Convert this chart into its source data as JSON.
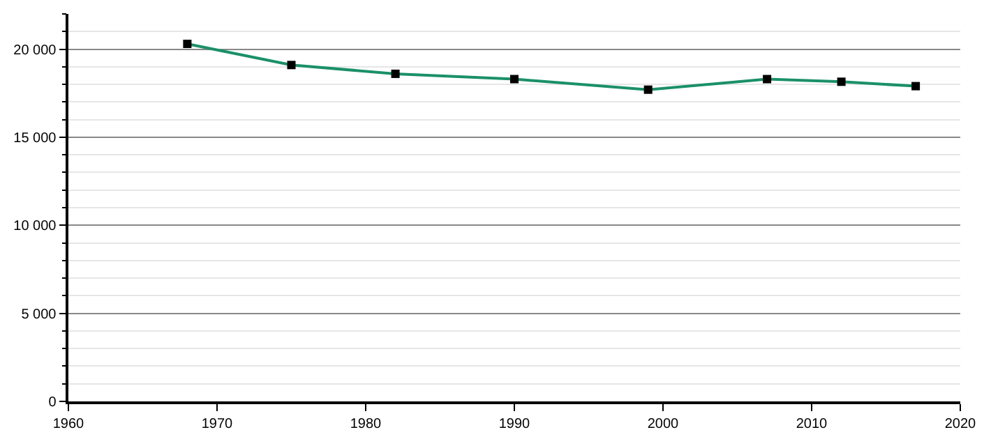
{
  "chart_data": {
    "type": "line",
    "x": [
      1968,
      1975,
      1982,
      1990,
      1999,
      2007,
      2012,
      2017
    ],
    "series": [
      {
        "color": "#1a9069",
        "values": [
          20300,
          19100,
          18600,
          18300,
          17700,
          18300,
          18150,
          17900
        ]
      }
    ],
    "xlim": [
      1960,
      2020
    ],
    "xticks": [
      1960,
      1970,
      1980,
      1990,
      2000,
      2010,
      2020
    ],
    "ylim": [
      0,
      22000
    ],
    "yticks": [
      0,
      {
        "value": 5000,
        "label": "5 000"
      },
      {
        "value": 10000,
        "label": "10 000"
      },
      {
        "value": 15000,
        "label": "15 000"
      },
      {
        "value": 20000,
        "label": "20 000"
      }
    ],
    "grid": "y",
    "marker": "square",
    "line_style": "solid"
  }
}
